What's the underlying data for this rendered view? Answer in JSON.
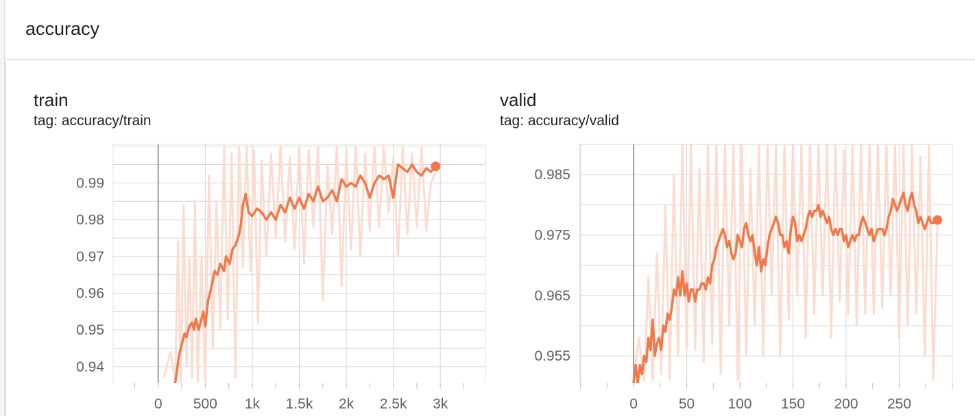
{
  "section": {
    "title": "accuracy"
  },
  "colors": {
    "line": "#f0794a",
    "raw": "#fbdcd0",
    "grid": "#d5d5d5",
    "axis_zero": "#9e9e9e",
    "tick": "#616161"
  },
  "chart_data": [
    {
      "type": "line",
      "title": "train",
      "subtitle": "tag: accuracy/train",
      "x_ticks": [
        0,
        500,
        1000,
        1500,
        2000,
        2500,
        3000
      ],
      "x_tick_labels": [
        "0",
        "500",
        "1k",
        "1.5k",
        "2k",
        "2.5k",
        "3k"
      ],
      "y_ticks": [
        0.94,
        0.95,
        0.96,
        0.97,
        0.98,
        0.99
      ],
      "y_tick_labels": [
        "0.94",
        "0.95",
        "0.96",
        "0.97",
        "0.98",
        "0.99"
      ],
      "xlim": [
        -480,
        3480
      ],
      "ylim": [
        0.9355,
        1.0005
      ],
      "grid": true,
      "series": [
        {
          "role": "smoothed",
          "x": [
            180,
            200,
            220,
            250,
            280,
            300,
            330,
            360,
            380,
            400,
            430,
            460,
            480,
            500,
            530,
            560,
            600,
            630,
            660,
            700,
            720,
            760,
            790,
            820,
            860,
            880,
            900,
            930,
            960,
            1000,
            1050,
            1100,
            1150,
            1200,
            1250,
            1300,
            1350,
            1400,
            1450,
            1500,
            1550,
            1600,
            1650,
            1700,
            1750,
            1800,
            1850,
            1900,
            1950,
            2000,
            2050,
            2100,
            2150,
            2200,
            2250,
            2300,
            2350,
            2400,
            2450,
            2500,
            2550,
            2600,
            2650,
            2700,
            2750,
            2800,
            2850,
            2900,
            2950
          ],
          "values": [
            0.9355,
            0.939,
            0.943,
            0.946,
            0.949,
            0.948,
            0.951,
            0.952,
            0.95,
            0.953,
            0.95,
            0.953,
            0.955,
            0.951,
            0.958,
            0.961,
            0.966,
            0.965,
            0.968,
            0.966,
            0.97,
            0.968,
            0.972,
            0.973,
            0.976,
            0.979,
            0.984,
            0.987,
            0.982,
            0.981,
            0.983,
            0.982,
            0.98,
            0.982,
            0.98,
            0.984,
            0.982,
            0.986,
            0.983,
            0.986,
            0.983,
            0.987,
            0.985,
            0.989,
            0.985,
            0.986,
            0.988,
            0.985,
            0.991,
            0.989,
            0.99,
            0.989,
            0.992,
            0.99,
            0.986,
            0.99,
            0.992,
            0.991,
            0.992,
            0.986,
            0.995,
            0.994,
            0.993,
            0.995,
            0.993,
            0.992,
            0.994,
            0.993,
            0.9945
          ]
        },
        {
          "role": "raw",
          "x": [
            60,
            130,
            180,
            210,
            240,
            270,
            300,
            330,
            360,
            390,
            420,
            460,
            500,
            540,
            580,
            620,
            660,
            700,
            740,
            780,
            820,
            860,
            900,
            940,
            980,
            1020,
            1060,
            1100,
            1150,
            1200,
            1250,
            1300,
            1350,
            1400,
            1450,
            1500,
            1550,
            1600,
            1650,
            1700,
            1750,
            1800,
            1850,
            1900,
            1950,
            2000,
            2050,
            2100,
            2150,
            2200,
            2250,
            2300,
            2350,
            2400,
            2450,
            2500,
            2550,
            2600,
            2650,
            2700,
            2750,
            2800,
            2850,
            2900,
            2950
          ],
          "values": [
            0.937,
            0.944,
            0.936,
            0.974,
            0.935,
            0.984,
            0.94,
            0.97,
            0.937,
            0.985,
            0.936,
            0.97,
            0.936,
            0.992,
            0.945,
            0.985,
            0.95,
            1.0,
            0.953,
            0.998,
            0.937,
            1.0,
            0.967,
            1.0,
            0.966,
            0.999,
            0.952,
            0.996,
            0.97,
            0.998,
            0.975,
            1.0,
            0.974,
            0.997,
            0.972,
            1.0,
            0.968,
            0.999,
            0.978,
            1.0,
            0.958,
            0.995,
            0.976,
            1.0,
            0.962,
            0.999,
            0.972,
            1.0,
            0.97,
            0.998,
            0.977,
            1.0,
            0.978,
            1.0,
            0.982,
            0.997,
            0.97,
            1.0,
            0.976,
            0.998,
            0.978,
            1.0,
            0.977,
            0.99,
            0.993
          ]
        }
      ],
      "last_point": {
        "x": 2950,
        "value": 0.9945
      }
    },
    {
      "type": "line",
      "title": "valid",
      "subtitle": "tag: accuracy/valid",
      "x_ticks": [
        0,
        50,
        100,
        150,
        200,
        250
      ],
      "x_tick_labels": [
        "0",
        "50",
        "100",
        "150",
        "200",
        "250"
      ],
      "y_ticks": [
        0.955,
        0.965,
        0.975,
        0.985
      ],
      "y_tick_labels": [
        "0.955",
        "0.965",
        "0.975",
        "0.985"
      ],
      "xlim": [
        -51,
        300
      ],
      "ylim": [
        0.9505,
        0.99
      ],
      "grid": true,
      "series": [
        {
          "role": "smoothed",
          "x": [
            0,
            2,
            4,
            6,
            8,
            10,
            12,
            14,
            16,
            18,
            20,
            22,
            24,
            26,
            28,
            30,
            32,
            34,
            36,
            38,
            40,
            42,
            44,
            46,
            48,
            50,
            52,
            54,
            56,
            58,
            60,
            62,
            64,
            66,
            68,
            70,
            72,
            74,
            76,
            78,
            80,
            82,
            84,
            86,
            88,
            90,
            92,
            94,
            96,
            98,
            100,
            102,
            104,
            106,
            108,
            110,
            112,
            114,
            116,
            118,
            120,
            122,
            124,
            126,
            128,
            130,
            132,
            134,
            136,
            138,
            140,
            142,
            144,
            146,
            148,
            150,
            152,
            154,
            156,
            158,
            160,
            162,
            164,
            166,
            168,
            170,
            172,
            174,
            176,
            178,
            180,
            182,
            184,
            186,
            188,
            190,
            192,
            194,
            196,
            198,
            200,
            202,
            204,
            206,
            208,
            210,
            212,
            214,
            216,
            218,
            220,
            222,
            224,
            226,
            228,
            230,
            232,
            234,
            236,
            238,
            240,
            242,
            244,
            246,
            248,
            250,
            252,
            254,
            256,
            258,
            260,
            262,
            264,
            266,
            268,
            270,
            272,
            274,
            276,
            278,
            280,
            282,
            284,
            286
          ],
          "values": [
            0.9505,
            0.9535,
            0.9505,
            0.9535,
            0.952,
            0.955,
            0.954,
            0.958,
            0.956,
            0.961,
            0.955,
            0.957,
            0.958,
            0.956,
            0.96,
            0.959,
            0.962,
            0.961,
            0.963,
            0.966,
            0.965,
            0.968,
            0.965,
            0.969,
            0.965,
            0.967,
            0.964,
            0.966,
            0.966,
            0.964,
            0.966,
            0.966,
            0.967,
            0.967,
            0.966,
            0.968,
            0.967,
            0.97,
            0.971,
            0.973,
            0.974,
            0.975,
            0.976,
            0.975,
            0.973,
            0.974,
            0.972,
            0.971,
            0.972,
            0.975,
            0.974,
            0.973,
            0.976,
            0.977,
            0.975,
            0.974,
            0.975,
            0.972,
            0.97,
            0.973,
            0.969,
            0.971,
            0.97,
            0.973,
            0.975,
            0.976,
            0.977,
            0.978,
            0.977,
            0.975,
            0.975,
            0.973,
            0.974,
            0.972,
            0.976,
            0.978,
            0.977,
            0.974,
            0.975,
            0.974,
            0.975,
            0.976,
            0.978,
            0.979,
            0.978,
            0.979,
            0.979,
            0.98,
            0.978,
            0.979,
            0.978,
            0.977,
            0.978,
            0.976,
            0.975,
            0.976,
            0.975,
            0.976,
            0.976,
            0.974,
            0.975,
            0.973,
            0.974,
            0.975,
            0.974,
            0.975,
            0.975,
            0.977,
            0.978,
            0.977,
            0.976,
            0.975,
            0.976,
            0.974,
            0.975,
            0.976,
            0.976,
            0.976,
            0.975,
            0.976,
            0.978,
            0.979,
            0.981,
            0.98,
            0.979,
            0.98,
            0.981,
            0.982,
            0.98,
            0.979,
            0.981,
            0.982,
            0.98,
            0.979,
            0.977,
            0.978,
            0.977,
            0.976,
            0.977,
            0.978,
            0.977,
            0.977,
            0.978,
            0.9775
          ],
          "values_note": ""
        },
        {
          "role": "raw",
          "x": [
            0,
            5,
            10,
            14,
            18,
            22,
            26,
            30,
            34,
            38,
            42,
            46,
            50,
            54,
            58,
            62,
            66,
            70,
            74,
            78,
            82,
            86,
            90,
            94,
            98,
            102,
            106,
            110,
            114,
            118,
            122,
            126,
            130,
            134,
            138,
            142,
            146,
            150,
            154,
            158,
            162,
            166,
            170,
            174,
            178,
            182,
            186,
            190,
            194,
            198,
            202,
            206,
            210,
            214,
            218,
            222,
            226,
            230,
            234,
            238,
            242,
            246,
            250,
            254,
            258,
            262,
            266,
            270,
            274,
            278,
            282,
            286
          ],
          "values": [
            0.951,
            0.958,
            0.951,
            0.968,
            0.951,
            0.972,
            0.952,
            0.98,
            0.951,
            0.985,
            0.955,
            0.99,
            0.956,
            0.99,
            0.956,
            0.986,
            0.954,
            0.99,
            0.957,
            0.99,
            0.952,
            0.99,
            0.96,
            0.99,
            0.951,
            0.99,
            0.955,
            0.986,
            0.96,
            0.99,
            0.955,
            0.99,
            0.965,
            0.99,
            0.955,
            0.99,
            0.961,
            0.99,
            0.965,
            0.99,
            0.958,
            0.99,
            0.962,
            0.99,
            0.965,
            0.99,
            0.958,
            0.99,
            0.964,
            0.989,
            0.962,
            0.99,
            0.96,
            0.99,
            0.962,
            0.99,
            0.962,
            0.99,
            0.963,
            0.99,
            0.965,
            0.99,
            0.958,
            0.99,
            0.96,
            0.99,
            0.962,
            0.988,
            0.955,
            0.99,
            0.951,
            0.977
          ]
        }
      ],
      "last_point": {
        "x": 286,
        "value": 0.9775
      }
    }
  ]
}
